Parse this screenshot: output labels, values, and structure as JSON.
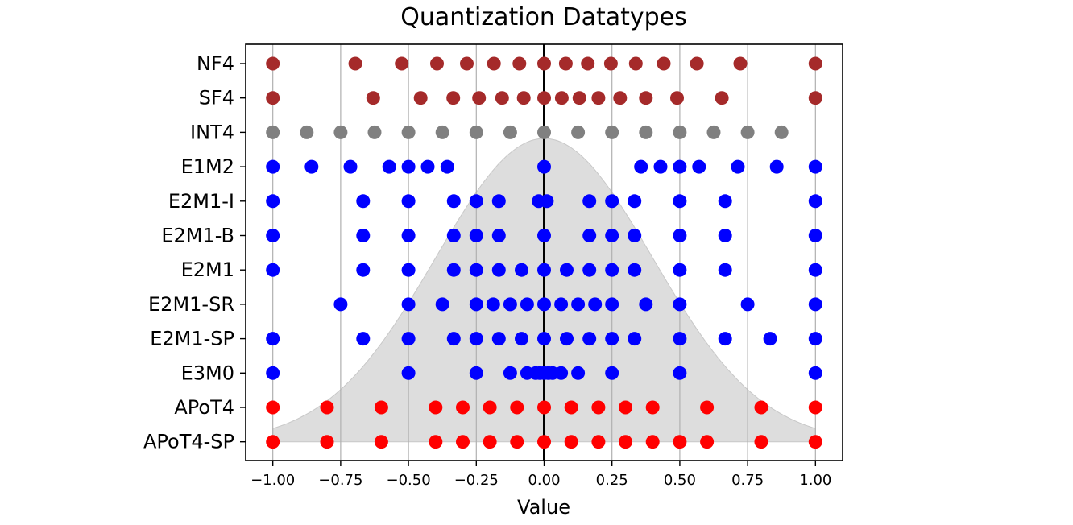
{
  "chart_data": {
    "type": "scatter",
    "title": "Quantization Datatypes",
    "xlabel": "Value",
    "ylabel": "",
    "xlim": [
      -1.1,
      1.1
    ],
    "xticks": [
      "−1.00",
      "−0.75",
      "−0.50",
      "−0.25",
      "0.00",
      "0.25",
      "0.50",
      "0.75",
      "1.00"
    ],
    "xtick_values": [
      -1,
      -0.75,
      -0.5,
      -0.25,
      0,
      0.25,
      0.5,
      0.75,
      1
    ],
    "grid": "vertical",
    "background_distribution": {
      "shape": "normal",
      "color": "#dddddd",
      "mean": 0,
      "std": 0.4
    },
    "zero_line_color": "#000000",
    "series": [
      {
        "name": "NF4",
        "color": "#a52a2a",
        "values": [
          -1.0,
          -0.696,
          -0.525,
          -0.395,
          -0.285,
          -0.185,
          -0.091,
          0.0,
          0.08,
          0.161,
          0.246,
          0.338,
          0.441,
          0.563,
          0.723,
          1.0
        ]
      },
      {
        "name": "SF4",
        "color": "#a52a2a",
        "values": [
          -1.0,
          -0.63,
          -0.455,
          -0.335,
          -0.24,
          -0.155,
          -0.075,
          0.0,
          0.065,
          0.13,
          0.2,
          0.28,
          0.375,
          0.49,
          0.655,
          1.0
        ]
      },
      {
        "name": "INT4",
        "color": "#808080",
        "values": [
          -1.0,
          -0.875,
          -0.75,
          -0.625,
          -0.5,
          -0.375,
          -0.25,
          -0.125,
          0.0,
          0.125,
          0.25,
          0.375,
          0.5,
          0.625,
          0.75,
          0.875
        ]
      },
      {
        "name": "E1M2",
        "color": "#0000ff",
        "values": [
          -1.0,
          -0.857,
          -0.714,
          -0.571,
          -0.5,
          -0.429,
          -0.357,
          0.0,
          0.357,
          0.429,
          0.5,
          0.571,
          0.714,
          0.857,
          1.0
        ]
      },
      {
        "name": "E2M1-I",
        "color": "#0000ff",
        "values": [
          -1.0,
          -0.667,
          -0.5,
          -0.333,
          -0.25,
          -0.167,
          -0.02,
          0.01,
          0.167,
          0.25,
          0.333,
          0.5,
          0.667,
          1.0
        ]
      },
      {
        "name": "E2M1-B",
        "color": "#0000ff",
        "values": [
          -1.0,
          -0.667,
          -0.5,
          -0.333,
          -0.25,
          -0.167,
          0.0,
          0.167,
          0.25,
          0.333,
          0.5,
          0.667,
          1.0
        ]
      },
      {
        "name": "E2M1",
        "color": "#0000ff",
        "values": [
          -1.0,
          -0.667,
          -0.5,
          -0.333,
          -0.25,
          -0.167,
          -0.083,
          0.0,
          0.083,
          0.167,
          0.25,
          0.333,
          0.5,
          0.667,
          1.0
        ]
      },
      {
        "name": "E2M1-SR",
        "color": "#0000ff",
        "values": [
          -0.75,
          -0.5,
          -0.375,
          -0.25,
          -0.1875,
          -0.125,
          -0.0625,
          0.0,
          0.0625,
          0.125,
          0.1875,
          0.25,
          0.375,
          0.5,
          0.75,
          1.0
        ]
      },
      {
        "name": "E2M1-SP",
        "color": "#0000ff",
        "values": [
          -1.0,
          -0.667,
          -0.5,
          -0.333,
          -0.25,
          -0.167,
          -0.083,
          0.0,
          0.083,
          0.167,
          0.25,
          0.333,
          0.5,
          0.667,
          0.833,
          1.0
        ]
      },
      {
        "name": "E3M0",
        "color": "#0000ff",
        "values": [
          -1.0,
          -0.5,
          -0.25,
          -0.125,
          -0.0625,
          -0.03125,
          -0.015625,
          0.0,
          0.015625,
          0.03125,
          0.0625,
          0.125,
          0.25,
          0.5,
          1.0
        ]
      },
      {
        "name": "APoT4",
        "color": "#ff0000",
        "values": [
          -1.0,
          -0.8,
          -0.6,
          -0.4,
          -0.3,
          -0.2,
          -0.1,
          0.0,
          0.1,
          0.2,
          0.3,
          0.4,
          0.6,
          0.8,
          1.0
        ]
      },
      {
        "name": "APoT4-SP",
        "color": "#ff0000",
        "values": [
          -1.0,
          -0.8,
          -0.6,
          -0.4,
          -0.3,
          -0.2,
          -0.1,
          0.0,
          0.1,
          0.2,
          0.3,
          0.4,
          0.5,
          0.6,
          0.8,
          1.0
        ]
      }
    ]
  }
}
